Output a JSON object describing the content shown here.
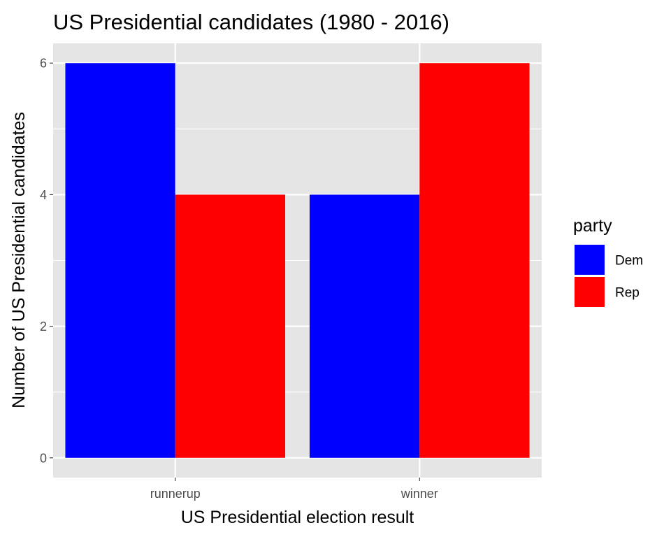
{
  "chart_data": {
    "type": "bar",
    "title": "US Presidential candidates (1980 - 2016)",
    "xlabel": "US Presidential election result",
    "ylabel": "Number of US Presidential candidates",
    "categories": [
      "runnerup",
      "winner"
    ],
    "series": [
      {
        "name": "Dem",
        "color": "#0000ff",
        "values": [
          6,
          4
        ]
      },
      {
        "name": "Rep",
        "color": "#ff0000",
        "values": [
          4,
          6
        ]
      }
    ],
    "ylim": [
      -0.3,
      6.3
    ],
    "yticks": [
      0,
      2,
      4,
      6
    ],
    "ytick_labels": [
      "0",
      "2",
      "4",
      "6"
    ],
    "grid": true,
    "panel_background": "#e5e5e5",
    "grid_color": "#ffffff",
    "legend": {
      "title": "party",
      "placement": "right"
    }
  }
}
